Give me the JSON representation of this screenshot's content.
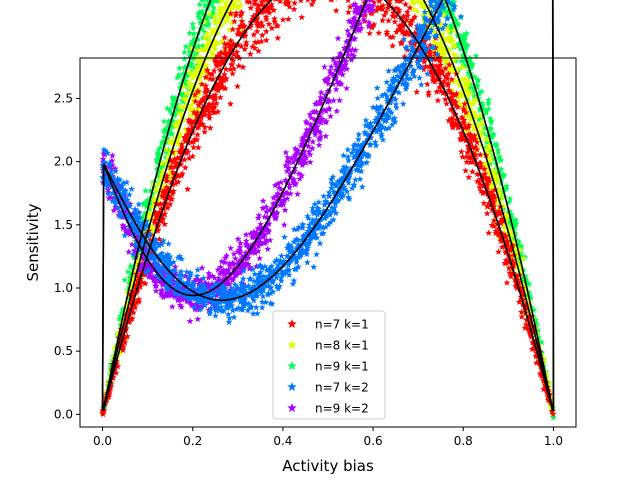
{
  "chart_data": {
    "type": "scatter",
    "xlabel": "Activity bias",
    "ylabel": "Sensitivity",
    "xlim": [
      -0.05,
      1.05
    ],
    "ylim": [
      -0.1,
      2.82
    ],
    "xticks": [
      0.0,
      0.2,
      0.4,
      0.6,
      0.8,
      1.0
    ],
    "xtick_labels": [
      "0.0",
      "0.2",
      "0.4",
      "0.6",
      "0.8",
      "1.0"
    ],
    "yticks": [
      0.0,
      0.5,
      1.0,
      1.5,
      2.0,
      2.5
    ],
    "ytick_labels": [
      "0.0",
      "0.5",
      "1.0",
      "1.5",
      "2.0",
      "2.5"
    ],
    "legend_position": "lower-center",
    "grid": false,
    "series": [
      {
        "name": "n=7 k=1",
        "color": "#ff0000",
        "marker": "star",
        "n": 7,
        "k": 1,
        "peak_points": [
          [
            0.29,
            2.04
          ],
          [
            0.71,
            2.04
          ]
        ]
      },
      {
        "name": "n=8 k=1",
        "color": "#ddff00",
        "marker": "star",
        "n": 8,
        "k": 1,
        "peak_points": [
          [
            0.29,
            2.29
          ],
          [
            0.71,
            2.29
          ]
        ]
      },
      {
        "name": "n=9 k=1",
        "color": "#00ff55",
        "marker": "star",
        "n": 9,
        "k": 1,
        "peak_points": [
          [
            0.29,
            2.53
          ],
          [
            0.71,
            2.53
          ]
        ]
      },
      {
        "name": "n=7 k=2",
        "color": "#0077ff",
        "marker": "star",
        "n": 7,
        "k": 2,
        "peak_points": [
          [
            0.16,
            1.22
          ],
          [
            0.37,
            1.61
          ],
          [
            0.63,
            1.61
          ],
          [
            0.84,
            1.22
          ]
        ]
      },
      {
        "name": "n=9 k=2",
        "color": "#aa00ff",
        "marker": "star",
        "n": 9,
        "k": 2,
        "peak_points": [
          [
            0.16,
            1.43
          ],
          [
            0.375,
            1.87
          ],
          [
            0.625,
            1.87
          ],
          [
            0.84,
            1.43
          ]
        ]
      }
    ],
    "theory_curve_color": "#000000"
  }
}
